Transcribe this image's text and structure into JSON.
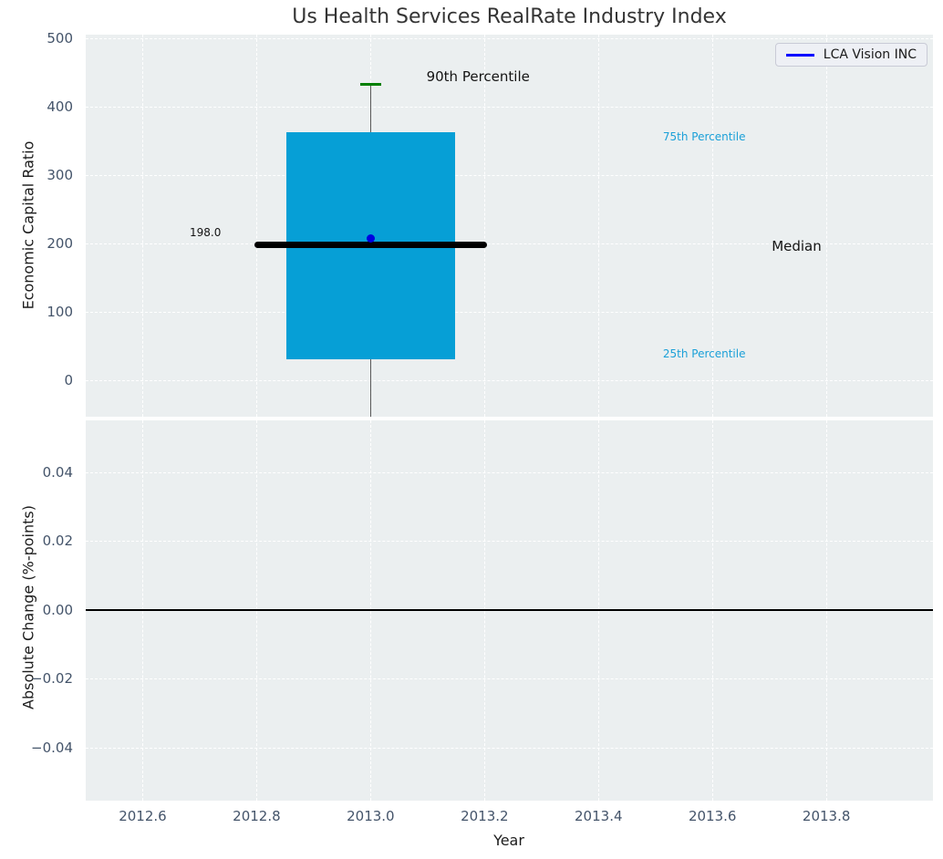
{
  "title": "Us Health Services RealRate Industry Index",
  "legend": {
    "label": "LCA Vision INC",
    "line_color": "#0000ff"
  },
  "colors": {
    "axes_background": "#ebeff0",
    "gridline": "#ffffff",
    "tick_label": "#44546a",
    "box_fill": "#069fd6",
    "median_line": "#000000",
    "whisker_cap": "#007f00",
    "company_point": "#0000e0",
    "percentile_text": "#1ba0d8",
    "annotation_text": "#141414"
  },
  "chart_data": [
    {
      "type": "boxplot",
      "title": "Us Health Services RealRate Industry Index",
      "ylabel": "Economic Capital Ratio",
      "ylim": [
        -53,
        505
      ],
      "yticks": [
        {
          "v": 0,
          "label": "0"
        },
        {
          "v": 100,
          "label": "100"
        },
        {
          "v": 200,
          "label": "200"
        },
        {
          "v": 300,
          "label": "300"
        },
        {
          "v": 400,
          "label": "400"
        },
        {
          "v": 500,
          "label": "500"
        }
      ],
      "xlim": [
        2012.5,
        2013.987
      ],
      "xticks": [
        {
          "v": 2012.6,
          "label": "2012.6"
        },
        {
          "v": 2012.8,
          "label": "2012.8"
        },
        {
          "v": 2013.0,
          "label": "2013.0"
        },
        {
          "v": 2013.2,
          "label": "2013.2"
        },
        {
          "v": 2013.4,
          "label": "2013.4"
        },
        {
          "v": 2013.6,
          "label": "2013.6"
        },
        {
          "v": 2013.8,
          "label": "2013.8"
        }
      ],
      "grid": "white dashed, on",
      "box": {
        "x": 2013.0,
        "q25": 31,
        "median": 198,
        "q75": 363,
        "p90": 432,
        "whisker_low": null,
        "whisker_low_clipped_below_axis": true,
        "box_half_width": 0.148,
        "median_half_width": 0.204,
        "cap_half_width": 0.018,
        "median_label": "198.0",
        "box_color": "#069fd6",
        "median_color": "#000000",
        "cap_color": "#007f00"
      },
      "company_point": {
        "series": "LCA Vision INC",
        "x": 2013.0,
        "y": 208,
        "color": "#0000e0"
      },
      "annotations": [
        {
          "text": "90th Percentile",
          "x": 2013.098,
          "y": 444,
          "ha": "left",
          "size": 15,
          "color": "#141414"
        },
        {
          "text": "198.0",
          "x": 2012.71,
          "y": 216,
          "ha": "center",
          "size": 12,
          "color": "#141414"
        },
        {
          "text": "75th Percentile",
          "x": 2013.513,
          "y": 356,
          "ha": "left",
          "size": 12,
          "color": "#1ba0d8"
        },
        {
          "text": "Median",
          "x": 2013.704,
          "y": 196,
          "ha": "left",
          "size": 15,
          "color": "#141414"
        },
        {
          "text": "25th Percentile",
          "x": 2013.513,
          "y": 39,
          "ha": "left",
          "size": 12,
          "color": "#1ba0d8"
        }
      ],
      "legend_position": "upper right"
    },
    {
      "type": "line",
      "ylabel": "Absolute Change (%-points)",
      "xlabel": "Year",
      "ylim": [
        -0.0555,
        0.0551
      ],
      "yticks": [
        {
          "v": 0.04,
          "label": "0.04"
        },
        {
          "v": 0.02,
          "label": "0.02"
        },
        {
          "v": 0.0,
          "label": "0.00"
        },
        {
          "v": -0.02,
          "label": "−0.02"
        },
        {
          "v": -0.04,
          "label": "−0.04"
        }
      ],
      "grid": "white dashed, on",
      "hline": {
        "y": 0.0,
        "color": "#000000"
      }
    }
  ]
}
